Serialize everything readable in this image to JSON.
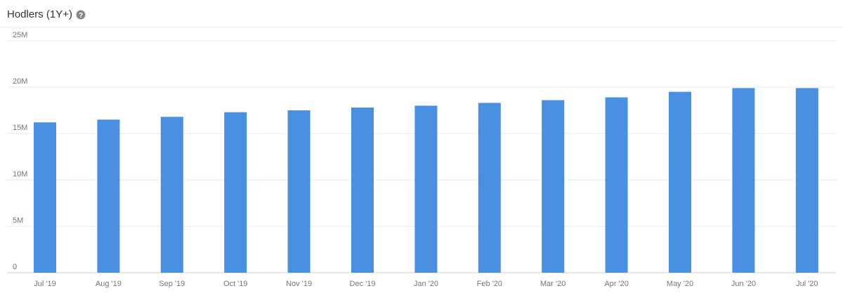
{
  "chart_data": {
    "type": "bar",
    "title": "Hodlers (1Y+)",
    "categories": [
      "Jul '19",
      "Aug '19",
      "Sep '19",
      "Oct '19",
      "Nov '19",
      "Dec '19",
      "Jan '20",
      "Feb '20",
      "Mar '20",
      "Apr '20",
      "May '20",
      "Jun '20",
      "Jul '20"
    ],
    "values": [
      16200000,
      16500000,
      16800000,
      17300000,
      17500000,
      17800000,
      18000000,
      18300000,
      18600000,
      18900000,
      19500000,
      19900000,
      19900000
    ],
    "color": "#4a90e2",
    "ylim": [
      0,
      25000000
    ],
    "yticks": [
      0,
      {
        "value": 5000000,
        "label": "5M"
      },
      {
        "value": 10000000,
        "label": "10M"
      },
      {
        "value": 15000000,
        "label": "15M"
      },
      {
        "value": 20000000,
        "label": "20M"
      },
      {
        "value": 25000000,
        "label": "25M"
      }
    ],
    "grid": true
  }
}
